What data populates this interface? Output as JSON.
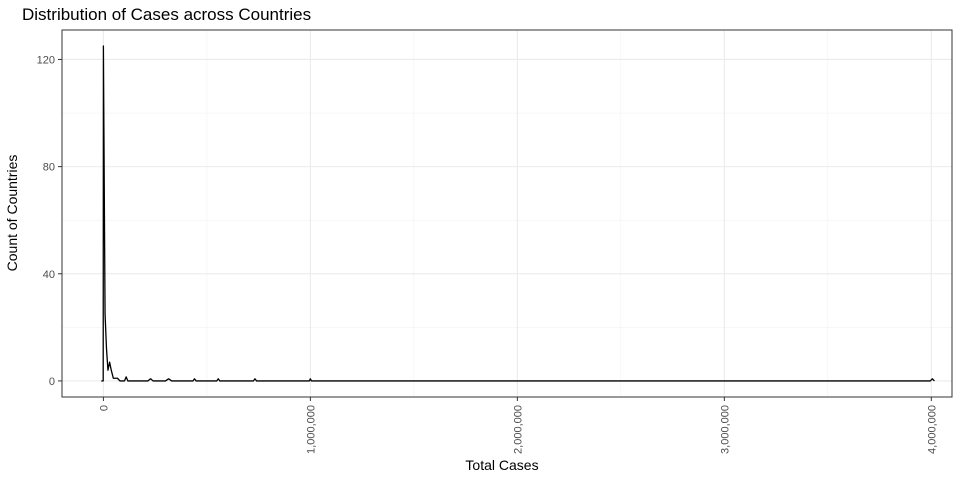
{
  "chart_data": {
    "type": "line",
    "title": "Distribution of Cases across Countries",
    "xlabel": "Total Cases",
    "ylabel": "Count of Countries",
    "xlim": [
      -200000,
      4100000
    ],
    "ylim": [
      -6,
      131
    ],
    "x_ticks": [
      {
        "value": 0,
        "label": "0"
      },
      {
        "value": 1000000,
        "label": "1,000,000"
      },
      {
        "value": 2000000,
        "label": "2,000,000"
      },
      {
        "value": 3000000,
        "label": "3,000,000"
      },
      {
        "value": 4000000,
        "label": "4,000,000"
      }
    ],
    "y_ticks": [
      {
        "value": 0,
        "label": "0"
      },
      {
        "value": 40,
        "label": "40"
      },
      {
        "value": 80,
        "label": "80"
      },
      {
        "value": 120,
        "label": "120"
      }
    ],
    "grid": true,
    "series": [
      {
        "x": [
          -10000,
          -1000,
          0,
          8000,
          15000,
          22000,
          30000,
          38000,
          48000,
          58000,
          68000,
          80000,
          92000,
          102000,
          110000,
          118000,
          126000,
          136000,
          148000,
          160000,
          180000,
          200000,
          215000,
          228000,
          240000,
          255000,
          270000,
          285000,
          300000,
          315000,
          330000,
          350000,
          400000,
          420000,
          433000,
          440000,
          448000,
          460000,
          475000,
          500000,
          530000,
          548000,
          555000,
          562000,
          575000,
          600000,
          650000,
          710000,
          725000,
          732000,
          740000,
          760000,
          800000,
          900000,
          980000,
          995000,
          1000000,
          1005000,
          1020000,
          1200000,
          2000000,
          3000000,
          3980000,
          3995000,
          4005000,
          4015000
        ],
        "y": [
          0,
          0,
          125,
          25,
          12,
          4,
          7,
          4,
          1,
          1,
          1,
          0,
          0,
          0,
          1.5,
          0,
          0,
          0,
          0,
          0,
          0,
          0,
          0,
          0.8,
          0,
          0,
          0,
          0,
          0,
          0.8,
          0,
          0,
          0,
          0,
          0,
          0.8,
          0,
          0,
          0,
          0,
          0,
          0,
          0.8,
          0,
          0,
          0,
          0,
          0,
          0,
          0.8,
          0,
          0,
          0,
          0,
          0,
          0,
          0.8,
          0,
          0,
          0,
          0,
          0,
          0,
          0,
          0.8,
          0
        ]
      }
    ]
  }
}
